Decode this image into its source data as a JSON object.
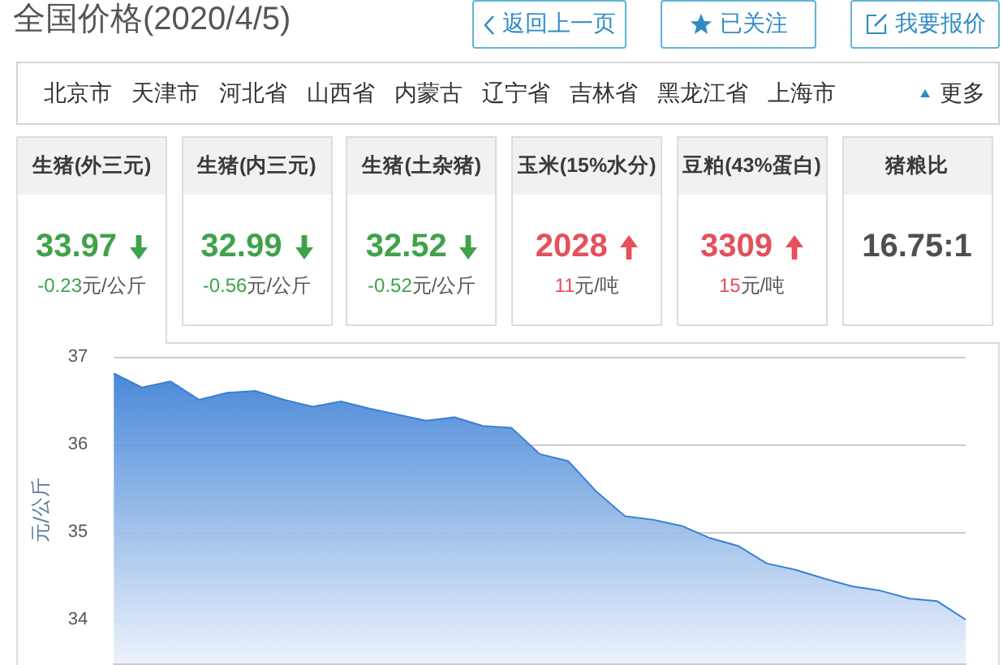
{
  "chart_data": [
    {
      "type": "other",
      "title": "全国价格(2020/4/5)",
      "annotations": [
        "返回上一页",
        "已关注",
        "我要报价"
      ]
    },
    {
      "type": "other",
      "categories": [
        "北京市",
        "天津市",
        "河北省",
        "山西省",
        "内蒙古",
        "辽宁省",
        "吉林省",
        "黑龙江省",
        "上海市"
      ],
      "annotations": [
        "更多"
      ]
    },
    {
      "type": "other",
      "categories": [
        "生猪(外三元)",
        "生猪(内三元)",
        "生猪(土杂猪)",
        "玉米(15%水分)",
        "豆粕(43%蛋白)",
        "猪粮比"
      ],
      "value_labels": [
        "33.97",
        "32.99",
        "32.52",
        "2028",
        "3309",
        "16.75:1"
      ],
      "annotations": [
        "-0.23元/公斤",
        "-0.56元/公斤",
        "-0.52元/公斤",
        "11元/吨",
        "15元/吨"
      ]
    },
    {
      "type": "area",
      "ylabel": "元/公斤",
      "categories": [
        null,
        null,
        null,
        null,
        null,
        null,
        null,
        null,
        null,
        null,
        null,
        null,
        null,
        null,
        null,
        null,
        null,
        null,
        null,
        null,
        null,
        null,
        null,
        null,
        null,
        null,
        null,
        null,
        null,
        null,
        null
      ],
      "values": [
        36.81,
        36.65,
        36.72,
        36.51,
        36.59,
        36.61,
        36.51,
        36.43,
        36.49,
        36.41,
        36.34,
        36.27,
        36.31,
        36.21,
        36.19,
        35.89,
        35.81,
        35.46,
        35.18,
        35.14,
        35.07,
        34.93,
        34.84,
        34.64,
        34.57,
        34.47,
        34.38,
        34.33,
        34.24,
        34.21,
        34.0
      ],
      "color": "#3b7fd4",
      "ylim": [
        33.5,
        37
      ],
      "yticks": [
        34,
        35,
        36,
        37
      ],
      "grid": "y",
      "tick_labels": "y"
    }
  ]
}
